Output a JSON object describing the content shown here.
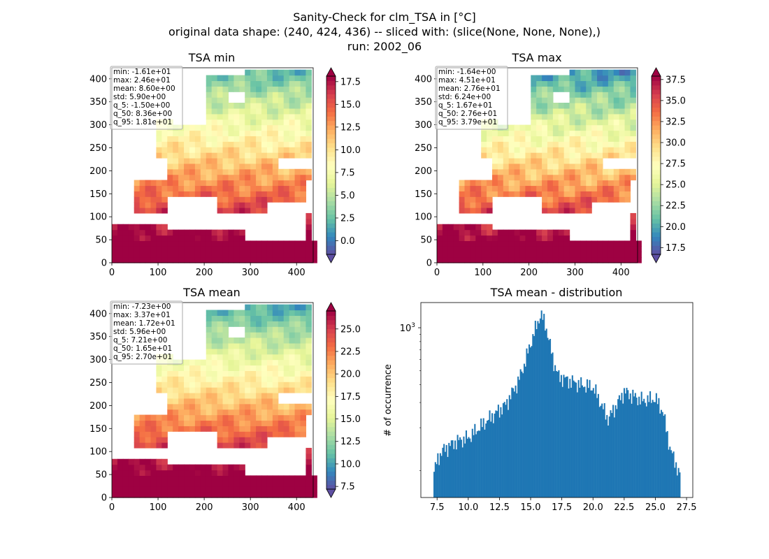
{
  "figure": {
    "title_lines": [
      "Sanity-Check for clm_TSA in [°C]",
      "original data shape: (240, 424, 436) -- sliced with: (slice(None, None, None),)",
      "run: 2002_06"
    ]
  },
  "colors": {
    "spectral_r": [
      "#5e4fa2",
      "#3288bd",
      "#66c2a5",
      "#abdda4",
      "#e6f598",
      "#ffffbf",
      "#fee08b",
      "#fdae61",
      "#f46d43",
      "#d53e4f",
      "#9e0142"
    ],
    "hist_bar": "#1f77b4"
  },
  "chart_data": [
    {
      "type": "heatmap",
      "title": "TSA min",
      "x_ticks": [
        0,
        100,
        200,
        300,
        400
      ],
      "y_ticks": [
        0,
        50,
        100,
        150,
        200,
        250,
        300,
        350,
        400
      ],
      "xlim": [
        0,
        436
      ],
      "ylim": [
        0,
        424
      ],
      "colorbar": {
        "range": [
          -1.5,
          18.1
        ],
        "ticks": [
          "0.0",
          "2.5",
          "5.0",
          "7.5",
          "10.0",
          "12.5",
          "15.0",
          "17.5"
        ],
        "tick_values": [
          0,
          2.5,
          5,
          7.5,
          10,
          12.5,
          15,
          17.5
        ]
      },
      "stats": [
        "min: -1.61e+01",
        "max: 2.46e+01",
        "mean: 8.60e+00",
        "std: 5.90e+00",
        "q_5: -1.50e+00",
        "q_50: 8.36e+00",
        "q_95: 1.81e+01"
      ],
      "field": "min"
    },
    {
      "type": "heatmap",
      "title": "TSA max",
      "x_ticks": [
        0,
        100,
        200,
        300,
        400
      ],
      "y_ticks": [
        0,
        50,
        100,
        150,
        200,
        250,
        300,
        350,
        400
      ],
      "xlim": [
        0,
        436
      ],
      "ylim": [
        0,
        424
      ],
      "colorbar": {
        "range": [
          16.7,
          37.9
        ],
        "ticks": [
          "17.5",
          "20.0",
          "22.5",
          "25.0",
          "27.5",
          "30.0",
          "32.5",
          "35.0",
          "37.5"
        ],
        "tick_values": [
          17.5,
          20,
          22.5,
          25,
          27.5,
          30,
          32.5,
          35,
          37.5
        ]
      },
      "stats": [
        "min: -1.64e+00",
        "max: 4.51e+01",
        "mean: 2.76e+01",
        "std: 6.24e+00",
        "q_5: 1.67e+01",
        "q_50: 2.76e+01",
        "q_95: 3.79e+01"
      ],
      "field": "max"
    },
    {
      "type": "heatmap",
      "title": "TSA mean",
      "x_ticks": [
        0,
        100,
        200,
        300,
        400
      ],
      "y_ticks": [
        0,
        50,
        100,
        150,
        200,
        250,
        300,
        350,
        400
      ],
      "xlim": [
        0,
        436
      ],
      "ylim": [
        0,
        424
      ],
      "colorbar": {
        "range": [
          7.2,
          27.0
        ],
        "ticks": [
          "7.5",
          "10.0",
          "12.5",
          "15.0",
          "17.5",
          "20.0",
          "22.5",
          "25.0"
        ],
        "tick_values": [
          7.5,
          10,
          12.5,
          15,
          17.5,
          20,
          22.5,
          25
        ]
      },
      "stats": [
        "min: -7.23e+00",
        "max: 3.37e+01",
        "mean: 1.72e+01",
        "std: 5.96e+00",
        "q_5: 7.21e+00",
        "q_50: 1.65e+01",
        "q_95: 2.70e+01"
      ],
      "field": "mean"
    },
    {
      "type": "bar",
      "title": "TSA mean - distribution",
      "xlabel": "",
      "ylabel": "# of occurrence",
      "yscale": "log",
      "xlim": [
        6.2,
        28.0
      ],
      "ylim_log": [
        65,
        1500
      ],
      "x_ticks": [
        "7.5",
        "10.0",
        "12.5",
        "15.0",
        "17.5",
        "20.0",
        "22.5",
        "25.0",
        "27.5"
      ],
      "x_tick_values": [
        7.5,
        10,
        12.5,
        15,
        17.5,
        20,
        22.5,
        25,
        27.5
      ],
      "y_ticks": [
        "10^3"
      ],
      "y_tick_values": [
        1000
      ],
      "bin_range": [
        7.21,
        27.0
      ],
      "envelope_x": [
        7.21,
        7.6,
        8.0,
        9.0,
        10.0,
        11.0,
        12.0,
        13.0,
        14.0,
        14.5,
        15.0,
        15.5,
        15.8,
        16.2,
        16.8,
        17.2,
        18.0,
        19.0,
        20.0,
        20.6,
        21.2,
        22.0,
        22.5,
        23.0,
        24.0,
        25.0,
        25.6,
        26.2,
        26.6,
        27.0
      ],
      "envelope_counts": [
        95,
        125,
        140,
        160,
        170,
        205,
        245,
        290,
        420,
        560,
        780,
        1050,
        1250,
        1050,
        600,
        460,
        430,
        400,
        385,
        300,
        230,
        300,
        360,
        340,
        310,
        320,
        260,
        140,
        115,
        90
      ]
    }
  ]
}
